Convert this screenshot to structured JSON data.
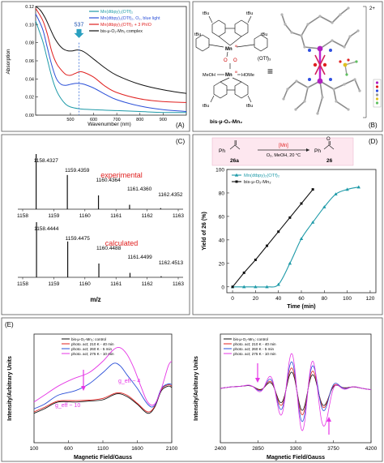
{
  "panel_labels": {
    "A": "(A)",
    "B": "(B)",
    "C": "(C)",
    "D": "(D)",
    "E": "(E)"
  },
  "colors": {
    "black": "#111111",
    "blue": "#2a4fd8",
    "red": "#e0201f",
    "teal": "#1e9aa8",
    "magenta": "#e536e5",
    "gray_struct": "#a9a9a9",
    "purple_mn": "#b020c0"
  },
  "panel_a": {
    "chart_data": {
      "type": "line",
      "xlabel": "Wavenumber (nm)",
      "ylabel": "Absorption",
      "xlim": [
        350,
        1000
      ],
      "ylim": [
        0,
        0.12
      ],
      "xticks": [
        "500",
        "600",
        "700",
        "800",
        "900"
      ],
      "yticks": [
        "0.00",
        "0.02",
        "0.04",
        "0.06",
        "0.08",
        "0.10",
        "0.12"
      ],
      "annotation": {
        "label": "537",
        "x": 537
      },
      "series": [
        {
          "name": "Mn(dtbpy)₂(OTf)₂",
          "color": "#1e9aa8",
          "x": [
            350,
            380,
            400,
            420,
            440,
            460,
            480,
            500,
            540,
            600,
            700,
            800,
            900,
            1000
          ],
          "y": [
            0.104,
            0.082,
            0.062,
            0.042,
            0.027,
            0.018,
            0.012,
            0.009,
            0.007,
            0.006,
            0.005,
            0.004,
            0.003,
            0.003
          ]
        },
        {
          "name": "Mn(dtbpy)₂(OTf)₂, O₂, blue light",
          "color": "#2a4fd8",
          "x": [
            350,
            380,
            400,
            420,
            440,
            460,
            480,
            500,
            520,
            540,
            560,
            600,
            650,
            700,
            800,
            900,
            1000
          ],
          "y": [
            0.112,
            0.095,
            0.075,
            0.055,
            0.04,
            0.034,
            0.033,
            0.034,
            0.035,
            0.035,
            0.034,
            0.03,
            0.023,
            0.017,
            0.01,
            0.006,
            0.004
          ]
        },
        {
          "name": "Mn(dtbpy)₂(OTf)₂ + 3 PhIO",
          "color": "#e0201f",
          "x": [
            350,
            380,
            400,
            420,
            440,
            460,
            480,
            500,
            520,
            540,
            560,
            600,
            650,
            700,
            800,
            900,
            1000
          ],
          "y": [
            0.118,
            0.105,
            0.09,
            0.07,
            0.057,
            0.05,
            0.045,
            0.044,
            0.046,
            0.048,
            0.047,
            0.042,
            0.032,
            0.025,
            0.018,
            0.015,
            0.014
          ]
        },
        {
          "name": "bis-μ-O₂-Mn₂ complex",
          "color": "#111111",
          "x": [
            350,
            370,
            390,
            410,
            430,
            450,
            470,
            490,
            510,
            530,
            550,
            570,
            600,
            650,
            700,
            800,
            900,
            1000
          ],
          "y": [
            0.12,
            0.116,
            0.108,
            0.097,
            0.086,
            0.078,
            0.073,
            0.071,
            0.071,
            0.072,
            0.071,
            0.068,
            0.062,
            0.052,
            0.044,
            0.034,
            0.028,
            0.024
          ]
        }
      ]
    }
  },
  "panel_b": {
    "labels": {
      "tbu": "tBu",
      "mn": "Mn",
      "mn_ox": "III",
      "o": "O",
      "counterion": "(OTf)₃",
      "meoh": "MeOH",
      "home": "HOMe",
      "charge": "2+",
      "equals": "≡",
      "name": "bis-μ-O₂-Mn₂"
    }
  },
  "panel_c": {
    "chart_data": [
      {
        "type": "bar",
        "label": "experimental",
        "x": [
          1158.4327,
          1159.4359,
          1160.4364,
          1161.436,
          1162.4352
        ],
        "peak_labels": [
          "1158.4327",
          "1159.4359",
          "1160.4364",
          "1161.4360",
          "1162.4352"
        ],
        "values": [
          100,
          62,
          25,
          8,
          2
        ],
        "xlim": [
          1158,
          1163
        ],
        "xticks": [
          "1158",
          "1159",
          "1160",
          "1161",
          "1162",
          "1163"
        ]
      },
      {
        "type": "bar",
        "label": "calculated",
        "x": [
          1158.4444,
          1159.4475,
          1160.4488,
          1161.4499,
          1162.4513
        ],
        "peak_labels": [
          "1158.4444",
          "1159.4475",
          "1160.4488",
          "1161.4499",
          "1162.4513"
        ],
        "values": [
          100,
          65,
          25,
          8,
          2
        ],
        "xlim": [
          1158,
          1163
        ],
        "xticks": [
          "1158",
          "1159",
          "1160",
          "1161",
          "1162",
          "1163"
        ],
        "xlabel": "m/z"
      }
    ]
  },
  "panel_d": {
    "scheme": {
      "mn": "[Mn]",
      "conditions": "O₂, MeOH, 20 °C",
      "reactant_label": "26a",
      "product_label": "26",
      "ph": "Ph",
      "o": "O"
    },
    "chart_data": {
      "type": "line",
      "xlabel": "Time (min)",
      "ylabel": "Yield of 26 (%)",
      "xlim": [
        -5,
        125
      ],
      "ylim": [
        -5,
        100
      ],
      "xticks": [
        "0",
        "20",
        "40",
        "60",
        "80",
        "100",
        "120"
      ],
      "yticks": [
        "0",
        "20",
        "40",
        "60",
        "80",
        "100"
      ],
      "series": [
        {
          "name": "Mn(dtbpy)₂(OTf)₂",
          "color": "#1e9aa8",
          "x": [
            0,
            10,
            20,
            30,
            40,
            50,
            60,
            70,
            80,
            90,
            100,
            110
          ],
          "y": [
            0,
            0,
            0,
            0,
            2,
            20,
            41,
            55,
            68,
            79,
            83,
            85
          ]
        },
        {
          "name": "bis-μ-O₂-Mn₂",
          "color": "#111111",
          "x": [
            0,
            10,
            20,
            30,
            40,
            50,
            60,
            70
          ],
          "y": [
            0,
            12,
            23,
            35,
            47,
            59,
            71,
            83
          ]
        }
      ]
    }
  },
  "panel_e": {
    "chart_data": [
      {
        "type": "line",
        "xlabel": "Magnetic Field/Gauss",
        "ylabel": "Intensity/Arbitrary Units",
        "xlim": [
          100,
          2100
        ],
        "ylim": [
          -1.2,
          1.2
        ],
        "xticks": [
          "100",
          "600",
          "1100",
          "1600",
          "2100"
        ],
        "annotations": [
          {
            "label": "g_eff ~ 10"
          },
          {
            "label": "g_eff ~ 4"
          }
        ],
        "legend": [
          "bis-μ-O₂-Mn₂: control",
          "photo. act; 210 K - 40 min",
          "photo. act; 260 K - 5 min",
          "photo. act; 275 K - 10 min"
        ],
        "series": [
          {
            "name": "bis-μ-O₂-Mn₂: control",
            "color": "#111111",
            "x": [
              100,
              250,
              450,
              700,
              900,
              1100,
              1300,
              1450,
              1600,
              1750,
              1850,
              1950,
              2050,
              2100
            ],
            "y": [
              -0.55,
              -0.45,
              -0.3,
              -0.3,
              -0.28,
              -0.25,
              -0.12,
              -0.18,
              -0.35,
              -0.55,
              -0.42,
              -0.05,
              0.05,
              0.02
            ]
          },
          {
            "name": "photo. act; 210 K - 40 min",
            "color": "#e0201f",
            "x": [
              100,
              250,
              450,
              700,
              900,
              1100,
              1300,
              1450,
              1600,
              1750,
              1850,
              1950,
              2050,
              2100
            ],
            "y": [
              -0.52,
              -0.42,
              -0.28,
              -0.27,
              -0.26,
              -0.22,
              -0.1,
              -0.15,
              -0.33,
              -0.52,
              -0.4,
              -0.02,
              0.08,
              0.05
            ]
          },
          {
            "name": "photo. act; 260 K - 5 min",
            "color": "#2a4fd8",
            "x": [
              100,
              250,
              450,
              700,
              900,
              1100,
              1250,
              1350,
              1450,
              1600,
              1750,
              1850,
              1950,
              2050,
              2100
            ],
            "y": [
              -0.45,
              -0.35,
              -0.15,
              -0.05,
              0.1,
              0.35,
              0.55,
              0.5,
              0.3,
              0.0,
              -0.35,
              -0.38,
              0.0,
              0.1,
              0.08
            ]
          },
          {
            "name": "photo. act; 275 K - 10 min",
            "color": "#e536e5",
            "x": [
              100,
              250,
              450,
              650,
              900,
              1100,
              1250,
              1350,
              1450,
              1550,
              1650,
              1750,
              1850,
              1950,
              2050,
              2100
            ],
            "y": [
              -0.3,
              -0.15,
              0.05,
              0.2,
              0.35,
              0.6,
              0.85,
              0.9,
              0.75,
              0.45,
              0.05,
              -0.3,
              -0.35,
              0.0,
              0.5,
              0.6
            ]
          }
        ]
      },
      {
        "type": "line",
        "xlabel": "Magnetic Field/Gauss",
        "ylabel": "Intensity/Arbitrary Units",
        "xlim": [
          2400,
          4200
        ],
        "ylim": [
          -1.2,
          1.2
        ],
        "xticks": [
          "2400",
          "2850",
          "3300",
          "3750",
          "4200"
        ],
        "legend": [
          "bis-μ-O₂-Mn₂: control",
          "photo. act; 210 K - 40 min",
          "photo. act; 260 K - 5 min",
          "photo. act; 275 K - 10 min"
        ],
        "series": [
          {
            "name": "bis-μ-O₂-Mn₂: control",
            "color": "#111111",
            "amp": 0.45
          },
          {
            "name": "photo. act; 210 K - 40 min",
            "color": "#e0201f",
            "amp": 0.55
          },
          {
            "name": "photo. act; 260 K - 5 min",
            "color": "#2a4fd8",
            "amp": 0.7
          },
          {
            "name": "photo. act; 275 K - 10 min",
            "color": "#e536e5",
            "amp": 0.9
          }
        ]
      }
    ]
  }
}
